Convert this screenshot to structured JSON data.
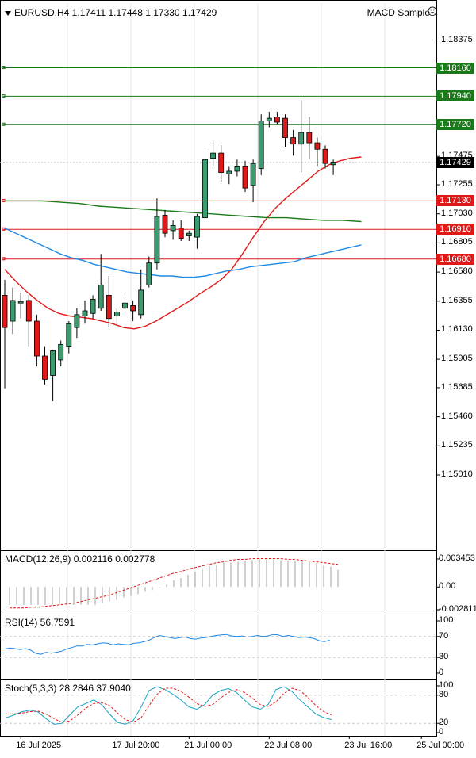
{
  "header": {
    "symbol_info": "EURUSD,H4  1.17411 1.17448 1.17330 1.17429",
    "ea_name": "MACD Sample",
    "ea_icon": "frown-face-icon"
  },
  "colors": {
    "bull": "#3c9b6e",
    "bear": "#e01818",
    "ma_fast": "#e01818",
    "ma_mid": "#1e88e5",
    "ma_slow": "#1a7a1a",
    "hline_green": "#1a7a1a",
    "hline_red": "#e01818",
    "grid": "#e6e6e6"
  },
  "chart_data": [
    {
      "type": "candlestick",
      "symbol": "EURUSD",
      "timeframe": "H4",
      "ylim": [
        1.1488,
        1.1859
      ],
      "y_ticks": [
        "1.18375",
        "1.18160",
        "1.17940",
        "1.17720",
        "1.17475",
        "1.17255",
        "1.17030",
        "1.16805",
        "1.16580",
        "1.16355",
        "1.16130",
        "1.15905",
        "1.15685",
        "1.15460",
        "1.15235",
        "1.15010"
      ],
      "x_tick_labels": [
        "16 Jul 2025",
        "17 Jul 20:00",
        "21 Jul 00:00",
        "22 Jul 08:00",
        "23 Jul 16:00",
        "25 Jul 00:00"
      ],
      "x_tick_index": [
        2,
        14,
        23,
        33,
        43,
        52
      ],
      "candles": [
        {
          "o": 1.164,
          "h": 1.1652,
          "l": 1.1568,
          "c": 1.1615
        },
        {
          "o": 1.162,
          "h": 1.1646,
          "l": 1.161,
          "c": 1.1636
        },
        {
          "o": 1.1634,
          "h": 1.1642,
          "l": 1.1622,
          "c": 1.1635
        },
        {
          "o": 1.1636,
          "h": 1.164,
          "l": 1.16,
          "c": 1.162
        },
        {
          "o": 1.162,
          "h": 1.1625,
          "l": 1.1585,
          "c": 1.1593
        },
        {
          "o": 1.1593,
          "h": 1.16,
          "l": 1.1571,
          "c": 1.1575
        },
        {
          "o": 1.1578,
          "h": 1.1598,
          "l": 1.1558,
          "c": 1.1597
        },
        {
          "o": 1.159,
          "h": 1.1605,
          "l": 1.1585,
          "c": 1.1602
        },
        {
          "o": 1.16,
          "h": 1.162,
          "l": 1.1595,
          "c": 1.1618
        },
        {
          "o": 1.1615,
          "h": 1.163,
          "l": 1.1607,
          "c": 1.1625
        },
        {
          "o": 1.1624,
          "h": 1.1636,
          "l": 1.1618,
          "c": 1.1628
        },
        {
          "o": 1.1626,
          "h": 1.164,
          "l": 1.1622,
          "c": 1.1637
        },
        {
          "o": 1.163,
          "h": 1.1672,
          "l": 1.1628,
          "c": 1.1648
        },
        {
          "o": 1.164,
          "h": 1.1655,
          "l": 1.1615,
          "c": 1.1622
        },
        {
          "o": 1.1624,
          "h": 1.163,
          "l": 1.1618,
          "c": 1.1627
        },
        {
          "o": 1.163,
          "h": 1.1638,
          "l": 1.1624,
          "c": 1.1634
        },
        {
          "o": 1.1632,
          "h": 1.1636,
          "l": 1.162,
          "c": 1.1628
        },
        {
          "o": 1.1625,
          "h": 1.166,
          "l": 1.1622,
          "c": 1.1644
        },
        {
          "o": 1.1648,
          "h": 1.167,
          "l": 1.1646,
          "c": 1.1665
        },
        {
          "o": 1.1665,
          "h": 1.1715,
          "l": 1.166,
          "c": 1.1701
        },
        {
          "o": 1.1702,
          "h": 1.1706,
          "l": 1.1685,
          "c": 1.1688
        },
        {
          "o": 1.169,
          "h": 1.1698,
          "l": 1.1683,
          "c": 1.1694
        },
        {
          "o": 1.1692,
          "h": 1.1698,
          "l": 1.1682,
          "c": 1.1684
        },
        {
          "o": 1.1686,
          "h": 1.169,
          "l": 1.1682,
          "c": 1.1688
        },
        {
          "o": 1.1685,
          "h": 1.1703,
          "l": 1.1676,
          "c": 1.1701
        },
        {
          "o": 1.17,
          "h": 1.1752,
          "l": 1.1698,
          "c": 1.1745
        },
        {
          "o": 1.1746,
          "h": 1.176,
          "l": 1.174,
          "c": 1.175
        },
        {
          "o": 1.175,
          "h": 1.1756,
          "l": 1.1728,
          "c": 1.1735
        },
        {
          "o": 1.1734,
          "h": 1.174,
          "l": 1.1726,
          "c": 1.1736
        },
        {
          "o": 1.1736,
          "h": 1.1745,
          "l": 1.1732,
          "c": 1.174
        },
        {
          "o": 1.174,
          "h": 1.1744,
          "l": 1.172,
          "c": 1.1723
        },
        {
          "o": 1.1725,
          "h": 1.1745,
          "l": 1.1712,
          "c": 1.1742
        },
        {
          "o": 1.1738,
          "h": 1.178,
          "l": 1.1733,
          "c": 1.1775
        },
        {
          "o": 1.1775,
          "h": 1.1782,
          "l": 1.177,
          "c": 1.1777
        },
        {
          "o": 1.1778,
          "h": 1.1782,
          "l": 1.1772,
          "c": 1.1774
        },
        {
          "o": 1.1777,
          "h": 1.178,
          "l": 1.1755,
          "c": 1.1762
        },
        {
          "o": 1.1762,
          "h": 1.1768,
          "l": 1.1748,
          "c": 1.1757
        },
        {
          "o": 1.1757,
          "h": 1.1791,
          "l": 1.1735,
          "c": 1.1766
        },
        {
          "o": 1.1766,
          "h": 1.1778,
          "l": 1.1745,
          "c": 1.1758
        },
        {
          "o": 1.1758,
          "h": 1.1762,
          "l": 1.174,
          "c": 1.1753
        },
        {
          "o": 1.1753,
          "h": 1.1756,
          "l": 1.1738,
          "c": 1.1742
        },
        {
          "o": 1.1741,
          "h": 1.1745,
          "l": 1.1733,
          "c": 1.1743
        }
      ],
      "moving_averages": [
        {
          "values": [
            1.166,
            1.1651,
            1.1643,
            1.1636,
            1.163,
            1.1626,
            1.1624,
            1.1623,
            1.1622,
            1.162,
            1.1618,
            1.1615,
            1.1614,
            1.1616,
            1.162,
            1.1625,
            1.163,
            1.1635,
            1.1641,
            1.1646,
            1.1652,
            1.166,
            1.1672,
            1.1685,
            1.1697,
            1.1707,
            1.1715,
            1.1722,
            1.1729,
            1.1736,
            1.1741,
            1.1744,
            1.1746,
            1.1747
          ]
        },
        {
          "values": [
            1.1692,
            1.1688,
            1.1684,
            1.168,
            1.1676,
            1.1672,
            1.1669,
            1.1667,
            1.1664,
            1.1662,
            1.166,
            1.1658,
            1.1657,
            1.1656,
            1.1655,
            1.1655,
            1.1654,
            1.1654,
            1.1655,
            1.1657,
            1.1659,
            1.166,
            1.1662,
            1.1663,
            1.1664,
            1.1665,
            1.1666,
            1.1669,
            1.1671,
            1.1673,
            1.1675,
            1.1677,
            1.1679
          ]
        },
        {
          "values": [
            1.1713,
            1.1713,
            1.1713,
            1.1712,
            1.1711,
            1.1709,
            1.1708,
            1.1707,
            1.1706,
            1.1705,
            1.1704,
            1.1703,
            1.1702,
            1.1701,
            1.17,
            1.17,
            1.1699,
            1.1698,
            1.1698,
            1.1697
          ]
        }
      ],
      "horizontal_levels": [
        {
          "price": "1.18160",
          "kind": "green"
        },
        {
          "price": "1.17940",
          "kind": "green"
        },
        {
          "price": "1.17720",
          "kind": "green"
        },
        {
          "price": "1.17130",
          "kind": "red"
        },
        {
          "price": "1.16910",
          "kind": "red"
        },
        {
          "price": "1.16680",
          "kind": "red"
        }
      ],
      "current_price": "1.17429"
    },
    {
      "type": "bar",
      "name": "MACD(12,26,9)",
      "label": "MACD(12,26,9) 0.002116 0.002778",
      "y_ticks": [
        "0.003453",
        "0.00",
        "-0.002811"
      ],
      "ylim": [
        -0.0028,
        0.0036
      ],
      "values": [
        -0.0022,
        -0.0022,
        -0.0022,
        -0.0022,
        -0.0022,
        -0.0022,
        -0.0022,
        -0.0022,
        -0.0022,
        -0.0022,
        -0.0022,
        -0.0022,
        -0.0022,
        -0.002,
        -0.0018,
        -0.0016,
        -0.0013,
        -0.0011,
        -0.0009,
        -0.0006,
        -0.0004,
        -0.0001,
        0.0003,
        0.0008,
        0.0011,
        0.0015,
        0.0019,
        0.0023,
        0.0026,
        0.0027,
        0.003,
        0.003,
        0.0031,
        0.0032,
        0.0033,
        0.0035,
        0.0035,
        0.0034,
        0.0033,
        0.0033,
        0.0032,
        0.0032,
        0.0031,
        0.003,
        0.0027,
        0.0025,
        0.0021
      ],
      "signal": [
        -0.0026,
        -0.0026,
        -0.0026,
        -0.0025,
        -0.0025,
        -0.0024,
        -0.0023,
        -0.0022,
        -0.0021,
        -0.002,
        -0.0018,
        -0.0016,
        -0.0014,
        -0.0012,
        -0.001,
        -0.0007,
        -0.0004,
        -0.0001,
        0.0002,
        0.0005,
        0.0008,
        0.0011,
        0.0014,
        0.0017,
        0.0019,
        0.0022,
        0.0024,
        0.0026,
        0.0028,
        0.003,
        0.0031,
        0.0033,
        0.0034,
        0.0034,
        0.0035,
        0.0035,
        0.0035,
        0.0035,
        0.0035,
        0.0034,
        0.0034,
        0.0033,
        0.0032,
        0.0031,
        0.003,
        0.0029,
        0.0028
      ]
    },
    {
      "type": "line",
      "name": "RSI(14)",
      "label": "RSI(14) 56.7591",
      "y_ticks": [
        "100",
        "70",
        "30",
        "0"
      ],
      "ylim": [
        0,
        100
      ],
      "values": [
        46,
        48,
        47,
        45,
        47,
        44,
        38,
        36,
        40,
        38,
        40,
        42,
        46,
        49,
        52,
        52,
        55,
        54,
        56,
        58,
        57,
        54,
        56,
        55,
        54,
        57,
        58,
        60,
        63,
        68,
        72,
        70,
        68,
        66,
        68,
        69,
        66,
        65,
        67,
        68,
        70,
        72,
        73,
        74,
        71,
        70,
        71,
        69,
        70,
        72,
        70,
        71,
        74,
        73,
        70,
        72,
        70,
        68,
        69,
        68,
        66,
        62,
        60,
        63
      ]
    },
    {
      "type": "line",
      "name": "Stoch(5,3,3)",
      "label": "Stoch(5,3,3) 28.2846 37.9040",
      "y_ticks": [
        "100",
        "80",
        "20",
        "0"
      ],
      "ylim": [
        0,
        100
      ],
      "main": [
        32,
        38,
        45,
        48,
        44,
        30,
        18,
        20,
        38,
        55,
        62,
        70,
        60,
        40,
        22,
        18,
        26,
        55,
        90,
        98,
        92,
        82,
        70,
        55,
        50,
        60,
        80,
        90,
        94,
        86,
        70,
        55,
        50,
        60,
        92,
        98,
        88,
        70,
        55,
        40,
        32,
        28
      ],
      "signal": [
        40,
        40,
        42,
        45,
        46,
        40,
        30,
        22,
        25,
        38,
        52,
        62,
        64,
        58,
        42,
        28,
        22,
        32,
        58,
        82,
        95,
        95,
        88,
        76,
        62,
        56,
        60,
        74,
        86,
        92,
        86,
        74,
        60,
        56,
        66,
        84,
        95,
        90,
        76,
        58,
        45,
        38
      ]
    }
  ]
}
